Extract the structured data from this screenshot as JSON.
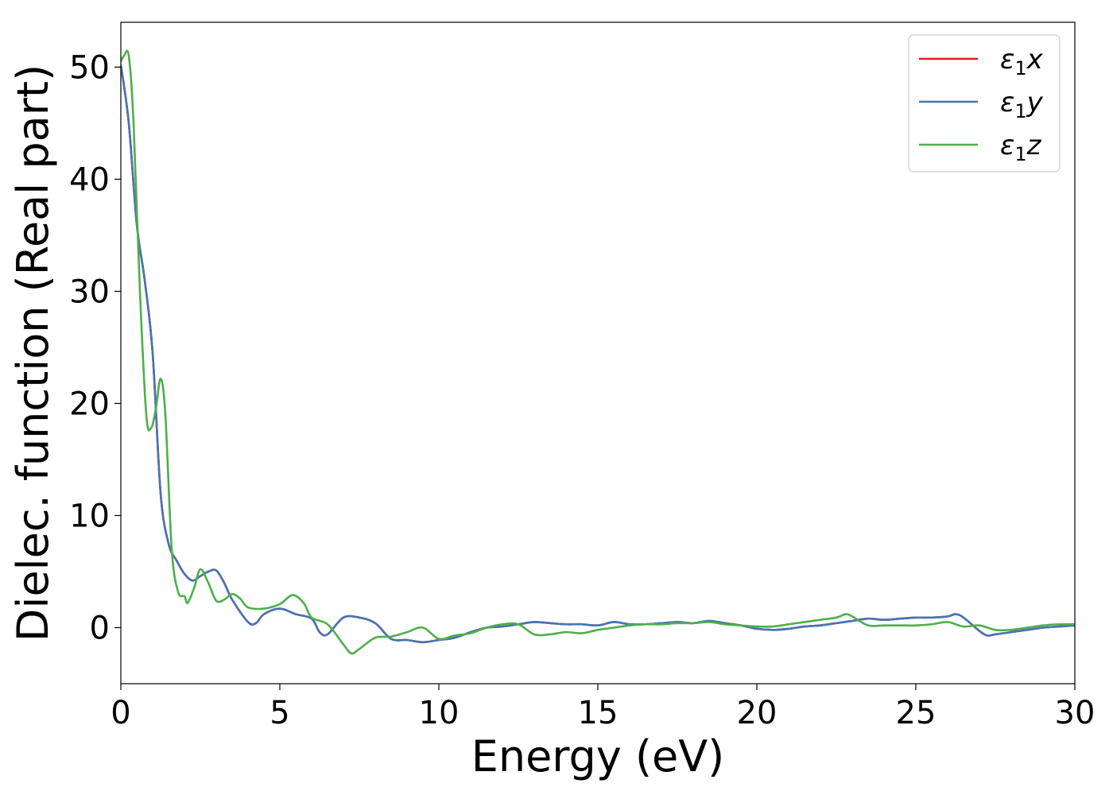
{
  "chart_data": {
    "type": "line",
    "title": "",
    "xlabel": "Energy (eV)",
    "ylabel": "Dielec. function (Real part)",
    "xlim": [
      0,
      30
    ],
    "ylim": [
      -5,
      54
    ],
    "xticks": [
      0,
      5,
      10,
      15,
      20,
      25,
      30
    ],
    "yticks": [
      0,
      10,
      20,
      30,
      40,
      50
    ],
    "grid": false,
    "legend_position": "top-right",
    "series": [
      {
        "name": "ε1x",
        "legend_base": "ε",
        "legend_sub": "1",
        "legend_var": "x",
        "color": "#e41a1c",
        "x": [
          0,
          0.25,
          0.5,
          0.75,
          1.0,
          1.25,
          1.5,
          1.75,
          2.0,
          2.25,
          2.5,
          2.75,
          3.0,
          3.25,
          3.5,
          4.0,
          4.25,
          4.5,
          5.0,
          5.5,
          6.0,
          6.25,
          6.5,
          7.0,
          7.5,
          8.0,
          8.5,
          9.0,
          9.5,
          10.0,
          10.5,
          11.0,
          11.5,
          12.0,
          12.5,
          13.0,
          13.5,
          14.0,
          14.5,
          15.0,
          15.5,
          16.0,
          16.5,
          17.0,
          17.5,
          18.0,
          18.5,
          19.0,
          19.5,
          20.0,
          20.5,
          21.0,
          21.5,
          22.0,
          22.5,
          23.0,
          23.5,
          24.0,
          24.5,
          25.0,
          25.5,
          26.0,
          26.25,
          26.5,
          27.0,
          27.25,
          27.5,
          28.0,
          28.5,
          29.0,
          29.5,
          30.0
        ],
        "y": [
          50.2,
          45.0,
          36.0,
          31.0,
          24.5,
          12.0,
          7.5,
          6.0,
          4.8,
          4.2,
          4.6,
          5.0,
          5.1,
          4.0,
          2.5,
          0.5,
          0.4,
          1.2,
          1.7,
          1.2,
          0.8,
          -0.4,
          -0.6,
          0.9,
          0.9,
          0.4,
          -1.0,
          -1.1,
          -1.3,
          -1.1,
          -0.9,
          -0.4,
          0.0,
          0.1,
          0.3,
          0.5,
          0.4,
          0.3,
          0.3,
          0.2,
          0.5,
          0.3,
          0.3,
          0.4,
          0.5,
          0.4,
          0.6,
          0.4,
          0.2,
          -0.1,
          -0.2,
          -0.1,
          0.1,
          0.2,
          0.4,
          0.6,
          0.8,
          0.7,
          0.8,
          0.9,
          0.9,
          1.0,
          1.2,
          0.9,
          -0.3,
          -0.7,
          -0.6,
          -0.4,
          -0.2,
          0.0,
          0.1,
          0.2
        ]
      },
      {
        "name": "ε1y",
        "legend_base": "ε",
        "legend_sub": "1",
        "legend_var": "y",
        "color": "#4575b4",
        "x": [
          0,
          0.25,
          0.5,
          0.75,
          1.0,
          1.25,
          1.5,
          1.75,
          2.0,
          2.25,
          2.5,
          2.75,
          3.0,
          3.25,
          3.5,
          4.0,
          4.25,
          4.5,
          5.0,
          5.5,
          6.0,
          6.25,
          6.5,
          7.0,
          7.5,
          8.0,
          8.5,
          9.0,
          9.5,
          10.0,
          10.5,
          11.0,
          11.5,
          12.0,
          12.5,
          13.0,
          13.5,
          14.0,
          14.5,
          15.0,
          15.5,
          16.0,
          16.5,
          17.0,
          17.5,
          18.0,
          18.5,
          19.0,
          19.5,
          20.0,
          20.5,
          21.0,
          21.5,
          22.0,
          22.5,
          23.0,
          23.5,
          24.0,
          24.5,
          25.0,
          25.5,
          26.0,
          26.25,
          26.5,
          27.0,
          27.25,
          27.5,
          28.0,
          28.5,
          29.0,
          29.5,
          30.0
        ],
        "y": [
          50.2,
          45.0,
          36.0,
          31.0,
          24.5,
          12.0,
          7.5,
          6.0,
          4.8,
          4.2,
          4.6,
          5.0,
          5.1,
          4.0,
          2.5,
          0.5,
          0.4,
          1.2,
          1.7,
          1.2,
          0.8,
          -0.4,
          -0.6,
          0.9,
          0.9,
          0.4,
          -1.0,
          -1.1,
          -1.3,
          -1.1,
          -0.9,
          -0.4,
          0.0,
          0.1,
          0.3,
          0.5,
          0.4,
          0.3,
          0.3,
          0.2,
          0.5,
          0.3,
          0.3,
          0.4,
          0.5,
          0.4,
          0.6,
          0.4,
          0.2,
          -0.1,
          -0.2,
          -0.1,
          0.1,
          0.2,
          0.4,
          0.6,
          0.8,
          0.7,
          0.8,
          0.9,
          0.9,
          1.0,
          1.2,
          0.9,
          -0.3,
          -0.7,
          -0.6,
          -0.4,
          -0.2,
          0.0,
          0.1,
          0.2
        ]
      },
      {
        "name": "ε1z",
        "legend_base": "ε",
        "legend_sub": "1",
        "legend_var": "z",
        "color": "#4daf4a",
        "x": [
          0,
          0.1,
          0.25,
          0.4,
          0.6,
          0.8,
          0.95,
          1.1,
          1.25,
          1.4,
          1.6,
          1.8,
          2.0,
          2.1,
          2.3,
          2.5,
          2.75,
          3.0,
          3.25,
          3.5,
          3.75,
          4.0,
          4.5,
          5.0,
          5.4,
          5.75,
          6.0,
          6.5,
          7.0,
          7.25,
          7.5,
          8.0,
          8.5,
          9.0,
          9.5,
          10.0,
          10.5,
          11.0,
          11.5,
          12.0,
          12.5,
          13.0,
          13.5,
          14.0,
          14.5,
          15.0,
          15.5,
          16.0,
          16.5,
          17.0,
          17.5,
          18.0,
          18.5,
          19.0,
          19.5,
          20.0,
          20.5,
          21.0,
          21.5,
          22.0,
          22.5,
          22.8,
          23.0,
          23.5,
          24.0,
          24.5,
          25.0,
          25.5,
          26.0,
          26.5,
          27.0,
          27.5,
          28.0,
          28.5,
          29.0,
          29.5,
          30.0
        ],
        "y": [
          50.5,
          51.0,
          51.0,
          45.0,
          30.0,
          19.0,
          17.8,
          19.5,
          22.2,
          19.0,
          7.0,
          3.2,
          2.8,
          2.2,
          3.5,
          5.2,
          4.0,
          2.4,
          2.5,
          3.0,
          2.6,
          1.8,
          1.7,
          2.1,
          2.9,
          2.2,
          0.9,
          0.3,
          -1.5,
          -2.3,
          -1.9,
          -0.9,
          -0.8,
          -0.4,
          0.0,
          -1.0,
          -0.7,
          -0.5,
          0.0,
          0.3,
          0.3,
          -0.6,
          -0.6,
          -0.4,
          -0.5,
          -0.2,
          0.0,
          0.2,
          0.3,
          0.3,
          0.4,
          0.4,
          0.5,
          0.3,
          0.2,
          0.1,
          0.1,
          0.3,
          0.5,
          0.7,
          0.9,
          1.2,
          1.0,
          0.2,
          0.2,
          0.2,
          0.2,
          0.3,
          0.5,
          0.1,
          0.2,
          -0.2,
          -0.2,
          0.0,
          0.2,
          0.3,
          0.3
        ]
      }
    ]
  }
}
